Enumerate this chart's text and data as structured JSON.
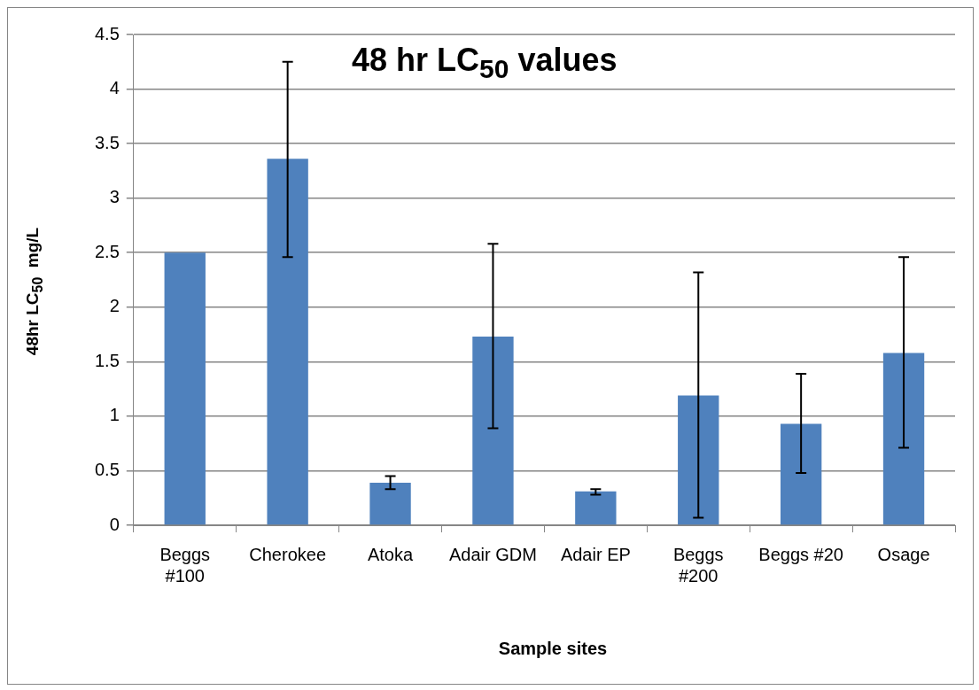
{
  "chart_data": {
    "type": "bar",
    "title": "48 hr LC$_{50}$ values",
    "xlabel": "Sample sites",
    "ylabel": "48hr LC$_{50}$  mg/L",
    "categories": [
      "Beggs #100",
      "Cherokee",
      "Atoka",
      "Adair GDM",
      "Adair EP",
      "Beggs #200",
      "Beggs #20",
      "Osage"
    ],
    "values": [
      2.5,
      3.36,
      0.39,
      1.73,
      0.31,
      1.19,
      0.93,
      1.58
    ],
    "errors": [
      null,
      [
        2.46,
        4.25
      ],
      [
        0.33,
        0.45
      ],
      [
        0.89,
        2.58
      ],
      [
        0.28,
        0.33
      ],
      [
        0.07,
        2.32
      ],
      [
        0.48,
        1.39
      ],
      [
        0.71,
        2.46
      ]
    ],
    "color": "#4f81bd",
    "ylim": [
      0,
      4.5
    ],
    "yticks": [
      0,
      0.5,
      1,
      1.5,
      2,
      2.5,
      3,
      3.5,
      4,
      4.5
    ],
    "grid": "y",
    "legend": false
  }
}
